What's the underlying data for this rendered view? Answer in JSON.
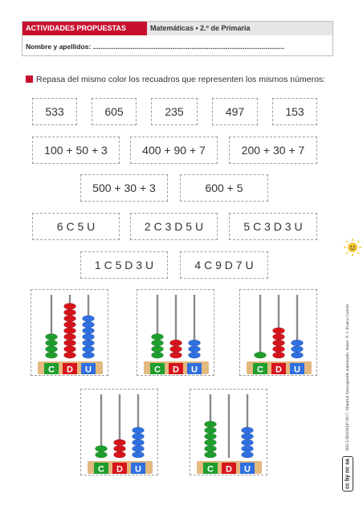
{
  "header": {
    "section": "ACTIVIDADES PROPUESTAS",
    "subject": "Matemáticas • 2.º de Primaria",
    "name_line": "Nombre y apellidos: ....................................................................................................."
  },
  "instruction": "Repasa del mismo color los recuadros que representen los mismos números:",
  "rows": [
    [
      "533",
      "605",
      "235",
      "497",
      "153"
    ],
    [
      "100 + 50 + 3",
      "400 + 90 + 7",
      "200 + 30 + 7"
    ],
    [
      "500 + 30 + 3",
      "600 + 5"
    ],
    [
      "6 C 5 U",
      "2 C 3 D 5 U",
      "5 C 3 D 3 U"
    ],
    [
      "1 C 5 D 3 U",
      "4 C 9 D 7 U"
    ]
  ],
  "abacus_labels": [
    "C",
    "D",
    "U"
  ],
  "abaci": [
    {
      "c": 4,
      "d": 9,
      "u": 7
    },
    {
      "c": 4,
      "d": 3,
      "u": 3
    },
    {
      "c": 1,
      "d": 5,
      "u": 3
    },
    {
      "c": 2,
      "d": 3,
      "u": 5
    },
    {
      "c": 6,
      "d": 0,
      "u": 5
    }
  ],
  "colors": {
    "c": "#1f9e2e",
    "d": "#d6141c",
    "u": "#2f6fe0",
    "brand": "#c8102e"
  },
  "side_credit": "RECURSOSEP 2017. Material fotocopiable autorizado. Autor: F. J. Franco Galvín",
  "license_badge": "cc by nc sa"
}
